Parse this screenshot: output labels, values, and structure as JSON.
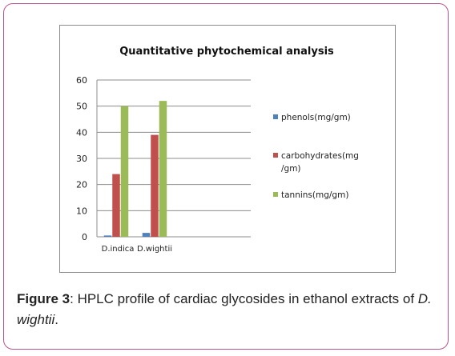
{
  "chart_data": {
    "type": "bar",
    "title": "Quantitative phytochemical analysis",
    "categories": [
      "D.indica",
      "D.wightii"
    ],
    "series": [
      {
        "name": "phenols(mg/gm)",
        "values": [
          0.5,
          1.5
        ],
        "color": "#4f81bd"
      },
      {
        "name": "carbohydrates(mg/gm)",
        "values": [
          24,
          39
        ],
        "color": "#c0504d"
      },
      {
        "name": "tannins(mg/gm)",
        "values": [
          50,
          52
        ],
        "color": "#9bbb59"
      }
    ],
    "legend_lines": [
      [
        "phenols(mg/gm)"
      ],
      [
        "carbohydrates(mg",
        "/gm)"
      ],
      [
        "tannins(mg/gm)"
      ]
    ],
    "ylim": [
      0,
      60
    ],
    "yticks": [
      "0",
      "10",
      "20",
      "30",
      "40",
      "50",
      "60"
    ],
    "grid": true,
    "legend_position": "right",
    "xlabel": "",
    "ylabel": ""
  },
  "caption": {
    "label": "Figure 3",
    "text_before": ": HPLC profile of cardiac glycosides in ethanol extracts of ",
    "species": "D. wightii",
    "text_after": "."
  }
}
